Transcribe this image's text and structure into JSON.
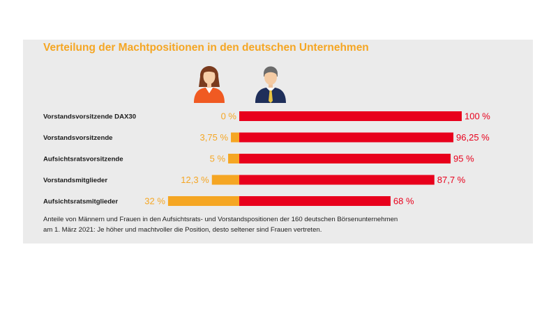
{
  "title": "Verteilung der Machtpositionen in den deutschen Unternehmen",
  "caption": [
    "Anteile von Männern und Frauen in den Aufsichtsrats- und Vorstandspositionen der 160 deutschen Börsenunternehmen",
    "am 1. März 2021: Je höher und machtvoller die Position, desto seltener sind Frauen vertreten."
  ],
  "icons": {
    "women": "businesswoman-icon",
    "men": "businessman-icon"
  },
  "colors": {
    "women": "#f5a623",
    "men": "#e8001c",
    "background": "#ebebeb"
  },
  "chart_data": {
    "type": "bar",
    "orientation": "horizontal",
    "stacked": "diverging",
    "categories": [
      "Vorstandsvorsitzende DAX30",
      "Vorstandsvorsitzende",
      "Aufsichtsratsvorsitzende",
      "Vorstandsmitglieder",
      "Aufsichtsratsmitglieder"
    ],
    "series": [
      {
        "values": [
          0,
          3.75,
          5,
          12.3,
          32
        ],
        "labels": [
          "0 %",
          "3,75 %",
          "5 %",
          "12,3 %",
          "32 %"
        ]
      },
      {
        "values": [
          100,
          96.25,
          95,
          87.7,
          68
        ],
        "labels": [
          "100 %",
          "96,25 %",
          "95 %",
          "87,7 %",
          "68 %"
        ]
      }
    ],
    "unit": "%",
    "xlim": [
      0,
      100
    ],
    "grid": false,
    "legend": "icons-above-bars"
  }
}
